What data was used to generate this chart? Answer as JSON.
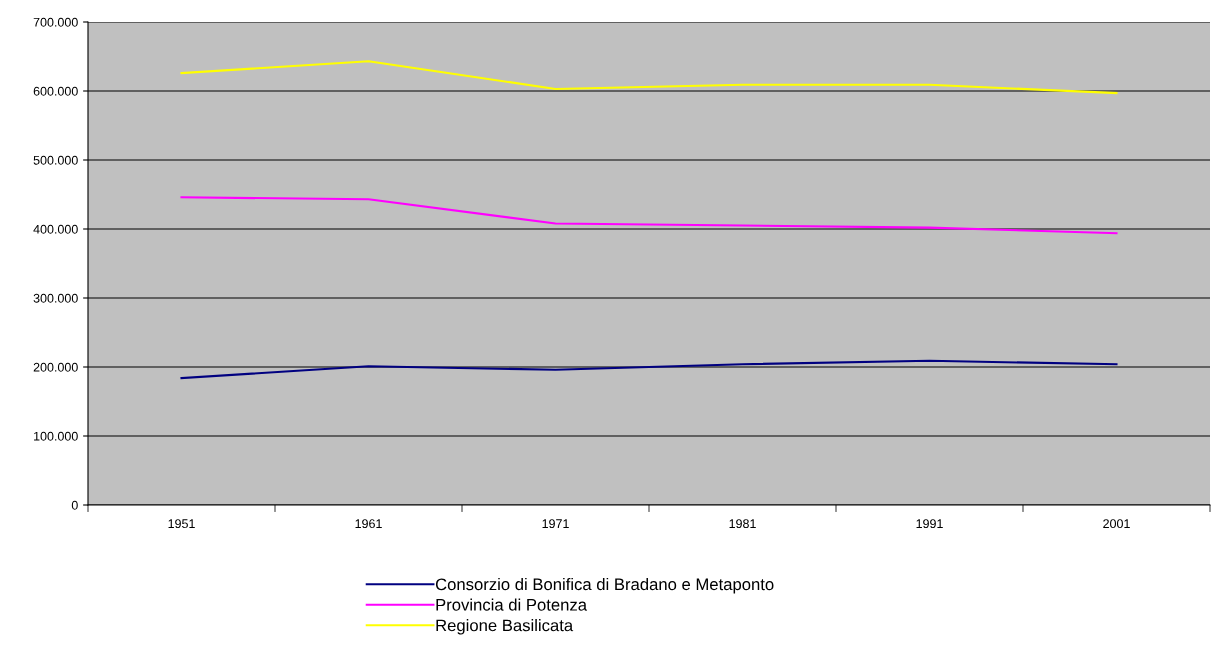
{
  "chart_data": {
    "type": "line",
    "categories": [
      "1951",
      "1961",
      "1971",
      "1981",
      "1991",
      "2001"
    ],
    "series": [
      {
        "name": "Consorzio di Bonifica di Bradano e Metaponto",
        "color": "#000080",
        "values": [
          184000,
          201000,
          196000,
          204000,
          209000,
          204000
        ]
      },
      {
        "name": "Provincia di Potenza",
        "color": "#ff00ff",
        "values": [
          446000,
          443000,
          408000,
          405000,
          402000,
          394000
        ]
      },
      {
        "name": "Regione Basilicata",
        "color": "#ffff00",
        "values": [
          626000,
          643000,
          603000,
          609000,
          609000,
          597000
        ]
      }
    ],
    "ylim": [
      0,
      700000
    ],
    "yticks": [
      {
        "value": 0,
        "label": "0"
      },
      {
        "value": 100000,
        "label": "100.000"
      },
      {
        "value": 200000,
        "label": "200.000"
      },
      {
        "value": 300000,
        "label": "300.000"
      },
      {
        "value": 400000,
        "label": "400.000"
      },
      {
        "value": 500000,
        "label": "500.000"
      },
      {
        "value": 600000,
        "label": "600.000"
      },
      {
        "value": 700000,
        "label": "700.000"
      }
    ],
    "grid": "y",
    "legend": "bottom",
    "marker": "none",
    "line_style": "solid"
  }
}
